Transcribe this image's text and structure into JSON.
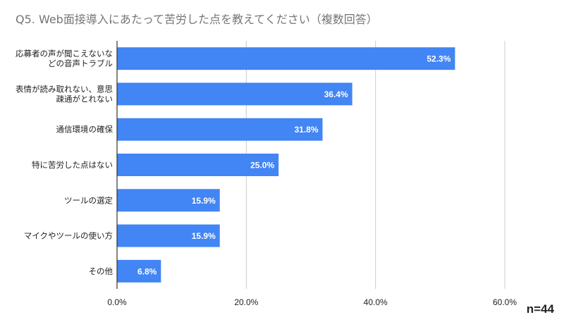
{
  "header": {
    "title": "Q5. Web面接導入にあたって苦労した点を教えてください（複数回答）",
    "n_label": "n=44"
  },
  "colors": {
    "bar": "#4285f4",
    "grid": "#cccccc",
    "axis": "#333333",
    "text": "#222222",
    "title": "#757575",
    "bar_label": "#ffffff"
  },
  "chart_data": {
    "type": "bar",
    "orientation": "horizontal",
    "categories": [
      [
        "応募者の声が聞こえないな",
        "どの音声トラブル"
      ],
      [
        "表情が読み取れない、意思",
        "疎通がとれない"
      ],
      [
        "通信環境の確保"
      ],
      [
        "特に苦労した点はない"
      ],
      [
        "ツールの選定"
      ],
      [
        "マイクやツールの使い方"
      ],
      [
        "その他"
      ]
    ],
    "values": [
      52.3,
      36.4,
      31.8,
      25.0,
      15.9,
      15.9,
      6.8
    ],
    "data_labels": [
      "52.3%",
      "36.4%",
      "31.8%",
      "25.0%",
      "15.9%",
      "15.9%",
      "6.8%"
    ],
    "xlim": [
      0,
      60
    ],
    "x_ticks": [
      0,
      20,
      40,
      60
    ],
    "x_tick_labels": [
      "0.0%",
      "20.0%",
      "40.0%",
      "60.0%"
    ],
    "grid": true,
    "legend": "none"
  }
}
